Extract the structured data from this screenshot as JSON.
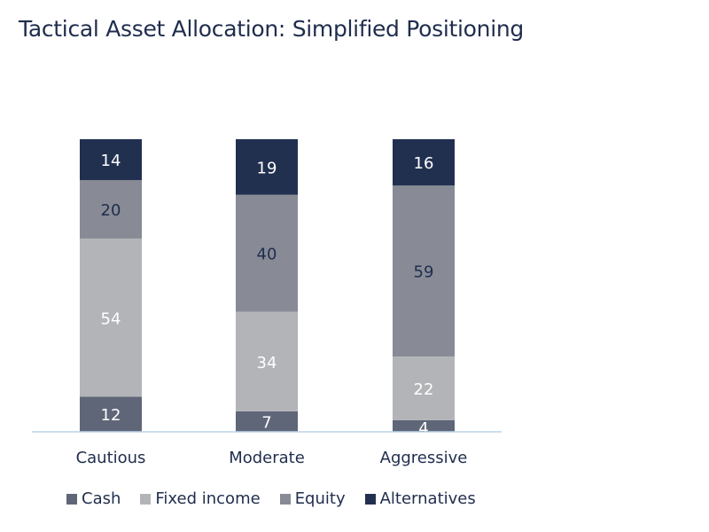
{
  "chart_data": {
    "type": "bar",
    "stacked": true,
    "title": "Tactical Asset Allocation: Simplified Positioning",
    "categories": [
      "Cautious",
      "Moderate",
      "Aggressive"
    ],
    "series": [
      {
        "name": "Cash",
        "values": [
          12,
          7,
          4
        ],
        "color": "#5f6678",
        "label_color": "#ffffff"
      },
      {
        "name": "Fixed income",
        "values": [
          54,
          34,
          22
        ],
        "color": "#b3b4b8",
        "label_color": "#ffffff"
      },
      {
        "name": "Equity",
        "values": [
          20,
          40,
          59
        ],
        "color": "#888b95",
        "label_color": "#1f2d4d"
      },
      {
        "name": "Alternatives",
        "values": [
          14,
          19,
          16
        ],
        "color": "#223050",
        "label_color": "#ffffff"
      }
    ],
    "ylim": [
      0,
      100
    ],
    "grid": false,
    "legend": "bottom"
  }
}
